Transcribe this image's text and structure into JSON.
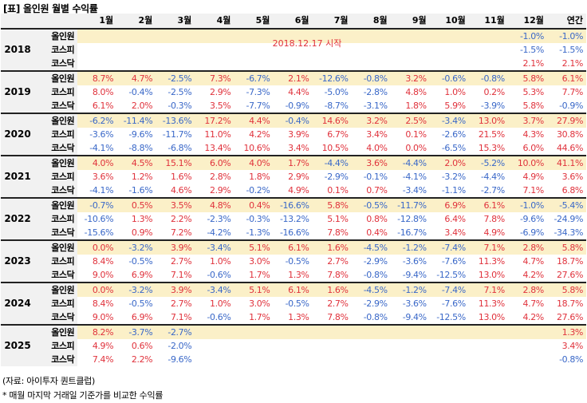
{
  "title": "[표] 올인원 월별 수익률",
  "columns": [
    "1월",
    "2월",
    "3월",
    "4월",
    "5월",
    "6월",
    "7월",
    "8월",
    "9월",
    "10월",
    "11월",
    "12월",
    "연간"
  ],
  "row_labels": [
    "올인원",
    "코스피",
    "코스닥"
  ],
  "groups": [
    {
      "year": "2018",
      "note": "2018.12.17 시작",
      "rows": [
        [
          "",
          "",
          "",
          "",
          "",
          "",
          "",
          "",
          "",
          "",
          "",
          "-1.0%",
          "-1.0%"
        ],
        [
          "",
          "",
          "",
          "",
          "",
          "",
          "",
          "",
          "",
          "",
          "",
          "-1.5%",
          "-1.5%"
        ],
        [
          "",
          "",
          "",
          "",
          "",
          "",
          "",
          "",
          "",
          "",
          "",
          "2.1%",
          "2.1%"
        ]
      ]
    },
    {
      "year": "2019",
      "rows": [
        [
          "8.7%",
          "4.7%",
          "-2.5%",
          "7.3%",
          "-6.7%",
          "2.1%",
          "-12.6%",
          "-0.8%",
          "3.2%",
          "-0.6%",
          "-0.8%",
          "5.8%",
          "6.1%"
        ],
        [
          "8.0%",
          "-0.4%",
          "-2.5%",
          "2.9%",
          "-7.3%",
          "4.4%",
          "-5.0%",
          "-2.8%",
          "4.8%",
          "1.0%",
          "0.2%",
          "5.3%",
          "7.7%"
        ],
        [
          "6.1%",
          "2.0%",
          "-0.3%",
          "3.5%",
          "-7.7%",
          "-0.9%",
          "-8.7%",
          "-3.1%",
          "1.8%",
          "5.9%",
          "-3.9%",
          "5.8%",
          "-0.9%"
        ]
      ]
    },
    {
      "year": "2020",
      "rows": [
        [
          "-6.2%",
          "-11.4%",
          "-13.6%",
          "17.2%",
          "4.4%",
          "-0.4%",
          "14.6%",
          "3.2%",
          "2.5%",
          "-3.4%",
          "13.0%",
          "3.7%",
          "27.9%"
        ],
        [
          "-3.6%",
          "-9.6%",
          "-11.7%",
          "11.0%",
          "4.2%",
          "3.9%",
          "6.7%",
          "3.4%",
          "0.1%",
          "-2.6%",
          "21.5%",
          "4.3%",
          "30.8%"
        ],
        [
          "-4.1%",
          "-8.8%",
          "-6.8%",
          "13.4%",
          "10.6%",
          "3.4%",
          "10.5%",
          "4.0%",
          "0.0%",
          "-6.5%",
          "15.3%",
          "6.0%",
          "44.6%"
        ]
      ]
    },
    {
      "year": "2021",
      "rows": [
        [
          "4.0%",
          "4.5%",
          "15.1%",
          "6.0%",
          "4.0%",
          "1.7%",
          "-4.4%",
          "3.6%",
          "-4.4%",
          "2.0%",
          "-5.2%",
          "10.0%",
          "41.1%"
        ],
        [
          "3.6%",
          "1.2%",
          "1.6%",
          "2.8%",
          "1.8%",
          "2.9%",
          "-2.9%",
          "-0.1%",
          "-4.1%",
          "-3.2%",
          "-4.4%",
          "4.9%",
          "3.6%"
        ],
        [
          "-4.1%",
          "-1.6%",
          "4.6%",
          "2.9%",
          "-0.2%",
          "4.9%",
          "0.1%",
          "0.7%",
          "-3.4%",
          "-1.1%",
          "-2.7%",
          "7.1%",
          "6.8%"
        ]
      ]
    },
    {
      "year": "2022",
      "rows": [
        [
          "-0.7%",
          "0.5%",
          "3.5%",
          "4.8%",
          "0.4%",
          "-16.6%",
          "5.8%",
          "-0.5%",
          "-11.7%",
          "6.9%",
          "6.1%",
          "-1.0%",
          "-5.4%"
        ],
        [
          "-10.6%",
          "1.3%",
          "2.2%",
          "-2.3%",
          "-0.3%",
          "-13.2%",
          "5.1%",
          "0.8%",
          "-12.8%",
          "6.4%",
          "7.8%",
          "-9.6%",
          "-24.9%"
        ],
        [
          "-15.6%",
          "0.9%",
          "7.2%",
          "-4.2%",
          "-1.3%",
          "-16.6%",
          "7.8%",
          "0.4%",
          "-16.7%",
          "3.4%",
          "4.9%",
          "-6.9%",
          "-34.3%"
        ]
      ]
    },
    {
      "year": "2023",
      "rows": [
        [
          "0.0%",
          "-3.2%",
          "3.9%",
          "-3.4%",
          "5.1%",
          "6.1%",
          "1.6%",
          "-4.5%",
          "-1.2%",
          "-7.4%",
          "7.1%",
          "2.8%",
          "5.8%"
        ],
        [
          "8.4%",
          "-0.5%",
          "2.7%",
          "1.0%",
          "3.0%",
          "-0.5%",
          "2.7%",
          "-2.9%",
          "-3.6%",
          "-7.6%",
          "11.3%",
          "4.7%",
          "18.7%"
        ],
        [
          "9.0%",
          "6.9%",
          "7.1%",
          "-0.6%",
          "1.7%",
          "1.3%",
          "7.8%",
          "-0.8%",
          "-9.4%",
          "-12.5%",
          "13.0%",
          "4.2%",
          "27.6%"
        ]
      ]
    },
    {
      "year": "2024",
      "rows": [
        [
          "0.0%",
          "-3.2%",
          "3.9%",
          "-3.4%",
          "5.1%",
          "6.1%",
          "1.6%",
          "-4.5%",
          "-1.2%",
          "-7.4%",
          "7.1%",
          "2.8%",
          "5.8%"
        ],
        [
          "8.4%",
          "-0.5%",
          "2.7%",
          "1.0%",
          "3.0%",
          "-0.5%",
          "2.7%",
          "-2.9%",
          "-3.6%",
          "-7.6%",
          "11.3%",
          "4.7%",
          "18.7%"
        ],
        [
          "9.0%",
          "6.9%",
          "7.1%",
          "-0.6%",
          "1.7%",
          "1.3%",
          "7.8%",
          "-0.8%",
          "-9.4%",
          "-12.5%",
          "13.0%",
          "4.2%",
          "27.6%"
        ]
      ]
    },
    {
      "year": "2025",
      "rows": [
        [
          "8.2%",
          "-3.7%",
          "-2.7%",
          "",
          "",
          "",
          "",
          "",
          "",
          "",
          "",
          "",
          "1.3%"
        ],
        [
          "4.9%",
          "0.6%",
          "-2.0%",
          "",
          "",
          "",
          "",
          "",
          "",
          "",
          "",
          "",
          "3.4%"
        ],
        [
          "7.4%",
          "2.2%",
          "-9.6%",
          "",
          "",
          "",
          "",
          "",
          "",
          "",
          "",
          "",
          "-0.8%"
        ]
      ]
    }
  ],
  "footnotes": [
    "(자료: 아이투자 퀀트클럽)",
    "* 매월 마지막 거래일 기준가를 비교한 수익률"
  ],
  "colors": {
    "positive": "#e0323c",
    "negative": "#3a68c8",
    "highlight": "#fbf0c8",
    "header_bg": "#f1f1f1"
  }
}
